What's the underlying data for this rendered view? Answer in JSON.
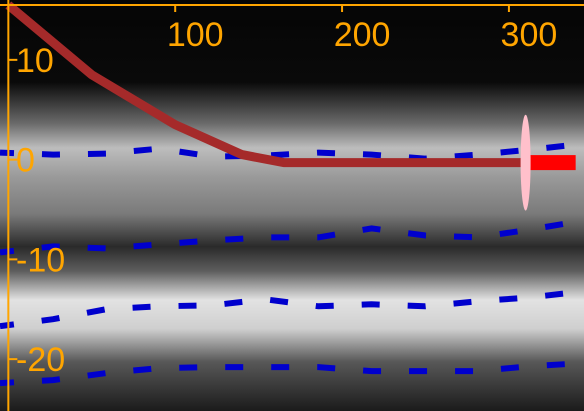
{
  "chart_data": {
    "type": "line",
    "title": "",
    "xlabel": "",
    "ylabel": "",
    "xlim": [
      -5,
      345
    ],
    "ylim": [
      -25.2,
      16
    ],
    "x_ticks": [
      100,
      200,
      300
    ],
    "y_ticks": [
      10,
      0,
      -10,
      -20
    ],
    "x_tick_labels": [
      "100",
      "200",
      "300"
    ],
    "y_tick_labels": [
      "10",
      "0",
      "-10",
      "-20"
    ],
    "grid": false,
    "background": "grayscale-intensity-image",
    "series": [
      {
        "style": "thick-line",
        "color": "#a52a2a",
        "x": [
          0,
          50,
          100,
          140,
          165,
          200,
          250,
          310
        ],
        "y": [
          15.5,
          8.5,
          3.5,
          0.5,
          -0.3,
          -0.3,
          -0.3,
          -0.3
        ]
      }
    ],
    "dashed_tracks": [
      {
        "color": "#0000cd",
        "y": [
          0.7,
          0.5,
          0.6,
          1.1,
          0.3,
          0.4,
          0.7,
          0.5,
          0.1,
          0.5,
          1.0,
          1.6
        ]
      },
      {
        "color": "#0000cd",
        "y": [
          -9.3,
          -8.7,
          -8.9,
          -8.5,
          -8.1,
          -7.8,
          -7.8,
          -6.9,
          -7.6,
          -7.8,
          -7.0,
          -6.1
        ]
      },
      {
        "color": "#0000cd",
        "y": [
          -16.7,
          -16.0,
          -15.0,
          -14.7,
          -14.6,
          -14.0,
          -14.7,
          -14.5,
          -14.7,
          -14.2,
          -13.8,
          -13.2
        ]
      },
      {
        "color": "#0000cd",
        "y": [
          -22.4,
          -22.1,
          -21.4,
          -20.9,
          -20.8,
          -20.8,
          -20.8,
          -21.2,
          -21.2,
          -21.2,
          -20.7,
          -20.4
        ]
      }
    ],
    "marker_end": {
      "color": "#ff0000",
      "x": [
        310,
        340
      ],
      "y": -0.3
    },
    "marker_ellipse": {
      "color": "#ffc0cb",
      "x": 310,
      "y": -0.3,
      "x_radius": 3,
      "y_radius": 4.8
    },
    "axis_color": "#ffa500"
  }
}
